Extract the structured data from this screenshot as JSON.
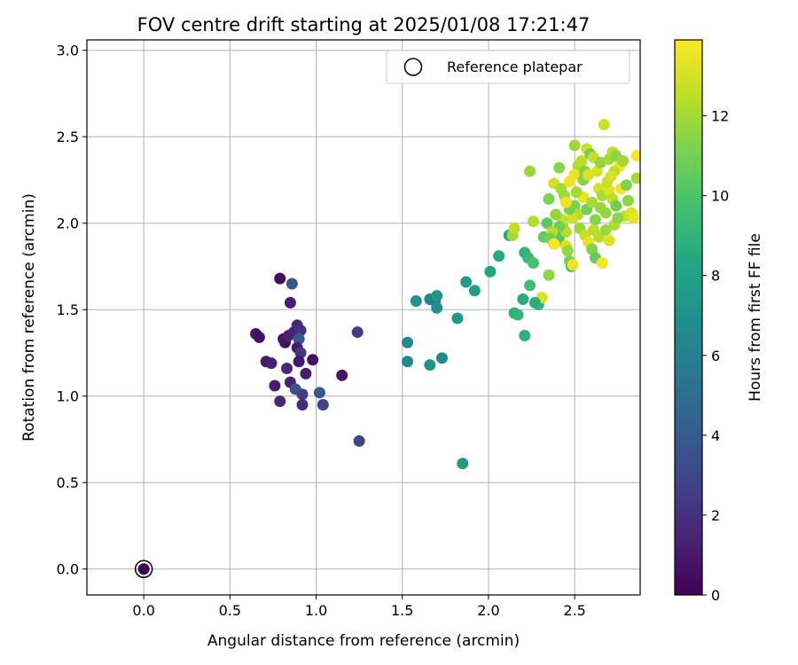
{
  "chart_data": {
    "type": "scatter",
    "title": "FOV centre drift starting at 2025/01/08 17:21:47",
    "xlabel": "Angular distance from reference (arcmin)",
    "ylabel": "Rotation from reference (arcmin)",
    "xlim": [
      -0.33,
      2.88
    ],
    "ylim": [
      -0.15,
      3.06
    ],
    "xticks": [
      0.0,
      0.5,
      1.0,
      1.5,
      2.0,
      2.5
    ],
    "xtick_labels": [
      "0.0",
      "0.5",
      "1.0",
      "1.5",
      "2.0",
      "2.5"
    ],
    "yticks": [
      0.0,
      0.5,
      1.0,
      1.5,
      2.0,
      2.5,
      3.0
    ],
    "ytick_labels": [
      "0.0",
      "0.5",
      "1.0",
      "1.5",
      "2.0",
      "2.5",
      "3.0"
    ],
    "grid": true,
    "legend": {
      "position": "top-right",
      "entries": [
        "Reference platepar"
      ]
    },
    "reference_point": {
      "x": 0.0,
      "y": 0.0,
      "h": 0
    },
    "colorbar": {
      "label": "Hours from first FF file",
      "colormap": "viridis",
      "range": [
        0,
        13.9
      ],
      "ticks": [
        0,
        2,
        4,
        6,
        8,
        10,
        12
      ],
      "tick_labels": [
        "0",
        "2",
        "4",
        "6",
        "8",
        "10",
        "12"
      ]
    },
    "points": [
      {
        "x": 0.79,
        "y": 1.68,
        "h": 0.5
      },
      {
        "x": 0.86,
        "y": 1.65,
        "h": 3.8
      },
      {
        "x": 0.85,
        "y": 1.54,
        "h": 1.2
      },
      {
        "x": 0.65,
        "y": 1.36,
        "h": 1.0
      },
      {
        "x": 0.67,
        "y": 1.34,
        "h": 0.6
      },
      {
        "x": 0.81,
        "y": 1.33,
        "h": 0.8
      },
      {
        "x": 0.82,
        "y": 1.31,
        "h": 0.7
      },
      {
        "x": 0.84,
        "y": 1.35,
        "h": 1.3
      },
      {
        "x": 0.87,
        "y": 1.37,
        "h": 1.5
      },
      {
        "x": 0.89,
        "y": 1.41,
        "h": 1.8
      },
      {
        "x": 0.91,
        "y": 1.38,
        "h": 2.0
      },
      {
        "x": 0.9,
        "y": 1.33,
        "h": 4.0
      },
      {
        "x": 0.89,
        "y": 1.28,
        "h": 1.1
      },
      {
        "x": 0.91,
        "y": 1.25,
        "h": 2.2
      },
      {
        "x": 0.71,
        "y": 1.2,
        "h": 1.0
      },
      {
        "x": 0.74,
        "y": 1.19,
        "h": 1.3
      },
      {
        "x": 0.83,
        "y": 1.16,
        "h": 1.6
      },
      {
        "x": 0.9,
        "y": 1.2,
        "h": 0.9
      },
      {
        "x": 0.98,
        "y": 1.21,
        "h": 0.7
      },
      {
        "x": 0.94,
        "y": 1.13,
        "h": 1.1
      },
      {
        "x": 0.85,
        "y": 1.08,
        "h": 1.4
      },
      {
        "x": 0.76,
        "y": 1.06,
        "h": 1.2
      },
      {
        "x": 0.88,
        "y": 1.04,
        "h": 3.5
      },
      {
        "x": 0.92,
        "y": 1.01,
        "h": 2.4
      },
      {
        "x": 0.79,
        "y": 0.97,
        "h": 1.6
      },
      {
        "x": 0.92,
        "y": 0.95,
        "h": 1.8
      },
      {
        "x": 1.02,
        "y": 1.02,
        "h": 3.9
      },
      {
        "x": 1.04,
        "y": 0.95,
        "h": 2.7
      },
      {
        "x": 1.15,
        "y": 1.12,
        "h": 0.8
      },
      {
        "x": 1.24,
        "y": 1.37,
        "h": 2.5
      },
      {
        "x": 1.25,
        "y": 0.74,
        "h": 2.9
      },
      {
        "x": 1.53,
        "y": 1.31,
        "h": 6.4
      },
      {
        "x": 1.53,
        "y": 1.2,
        "h": 6.7
      },
      {
        "x": 1.58,
        "y": 1.55,
        "h": 7.0
      },
      {
        "x": 1.66,
        "y": 1.56,
        "h": 6.3
      },
      {
        "x": 1.69,
        "y": 1.55,
        "h": 6.0
      },
      {
        "x": 1.7,
        "y": 1.58,
        "h": 7.3
      },
      {
        "x": 1.7,
        "y": 1.51,
        "h": 6.9
      },
      {
        "x": 1.66,
        "y": 1.18,
        "h": 7.2
      },
      {
        "x": 1.73,
        "y": 1.22,
        "h": 6.6
      },
      {
        "x": 1.82,
        "y": 1.45,
        "h": 7.5
      },
      {
        "x": 1.85,
        "y": 0.61,
        "h": 7.6
      },
      {
        "x": 1.87,
        "y": 1.66,
        "h": 7.7
      },
      {
        "x": 1.92,
        "y": 1.61,
        "h": 7.8
      },
      {
        "x": 2.01,
        "y": 1.72,
        "h": 8.2
      },
      {
        "x": 2.06,
        "y": 1.81,
        "h": 8.5
      },
      {
        "x": 2.12,
        "y": 1.93,
        "h": 8.3
      },
      {
        "x": 2.15,
        "y": 1.48,
        "h": 8.8
      },
      {
        "x": 2.17,
        "y": 1.47,
        "h": 9.1
      },
      {
        "x": 2.2,
        "y": 1.56,
        "h": 8.6
      },
      {
        "x": 2.21,
        "y": 1.83,
        "h": 9.0
      },
      {
        "x": 2.23,
        "y": 1.8,
        "h": 9.3
      },
      {
        "x": 2.24,
        "y": 1.64,
        "h": 9.6
      },
      {
        "x": 2.21,
        "y": 1.35,
        "h": 8.9
      },
      {
        "x": 2.26,
        "y": 1.77,
        "h": 9.8
      },
      {
        "x": 2.29,
        "y": 1.53,
        "h": 9.2
      },
      {
        "x": 2.31,
        "y": 1.57,
        "h": 13.2
      },
      {
        "x": 2.27,
        "y": 1.54,
        "h": 8.7
      },
      {
        "x": 2.32,
        "y": 1.92,
        "h": 10.6
      },
      {
        "x": 2.34,
        "y": 2.0,
        "h": 10.4
      },
      {
        "x": 2.35,
        "y": 1.7,
        "h": 11.5
      },
      {
        "x": 2.14,
        "y": 1.93,
        "h": 12.0
      },
      {
        "x": 2.15,
        "y": 1.97,
        "h": 12.6
      },
      {
        "x": 2.26,
        "y": 2.01,
        "h": 12.3
      },
      {
        "x": 2.24,
        "y": 2.3,
        "h": 11.8
      },
      {
        "x": 2.35,
        "y": 2.14,
        "h": 11.2
      },
      {
        "x": 2.38,
        "y": 2.23,
        "h": 13.0
      },
      {
        "x": 2.41,
        "y": 2.32,
        "h": 11.4
      },
      {
        "x": 2.42,
        "y": 2.2,
        "h": 12.1
      },
      {
        "x": 2.44,
        "y": 2.16,
        "h": 11.9
      },
      {
        "x": 2.39,
        "y": 1.89,
        "h": 10.8
      },
      {
        "x": 2.41,
        "y": 1.92,
        "h": 10.2
      },
      {
        "x": 2.43,
        "y": 1.98,
        "h": 11.6
      },
      {
        "x": 2.45,
        "y": 1.95,
        "h": 12.4
      },
      {
        "x": 2.45,
        "y": 1.87,
        "h": 13.3
      },
      {
        "x": 2.46,
        "y": 1.84,
        "h": 11.7
      },
      {
        "x": 2.47,
        "y": 1.78,
        "h": 11.1
      },
      {
        "x": 2.48,
        "y": 1.75,
        "h": 10.1
      },
      {
        "x": 2.49,
        "y": 1.76,
        "h": 13.6
      },
      {
        "x": 2.5,
        "y": 2.45,
        "h": 11.9
      },
      {
        "x": 2.52,
        "y": 2.33,
        "h": 12.2
      },
      {
        "x": 2.5,
        "y": 2.28,
        "h": 13.4
      },
      {
        "x": 2.54,
        "y": 2.36,
        "h": 12.5
      },
      {
        "x": 2.56,
        "y": 2.3,
        "h": 11.3
      },
      {
        "x": 2.57,
        "y": 2.43,
        "h": 12.8
      },
      {
        "x": 2.59,
        "y": 2.4,
        "h": 11.0
      },
      {
        "x": 2.61,
        "y": 2.38,
        "h": 12.7
      },
      {
        "x": 2.63,
        "y": 2.3,
        "h": 13.1
      },
      {
        "x": 2.65,
        "y": 2.35,
        "h": 11.6
      },
      {
        "x": 2.67,
        "y": 2.57,
        "h": 12.9
      },
      {
        "x": 2.7,
        "y": 2.37,
        "h": 12.0
      },
      {
        "x": 2.72,
        "y": 2.41,
        "h": 12.4
      },
      {
        "x": 2.74,
        "y": 2.39,
        "h": 11.5
      },
      {
        "x": 2.76,
        "y": 2.33,
        "h": 13.7
      },
      {
        "x": 2.73,
        "y": 2.3,
        "h": 12.6
      },
      {
        "x": 2.78,
        "y": 2.36,
        "h": 11.9
      },
      {
        "x": 2.86,
        "y": 2.39,
        "h": 13.8
      },
      {
        "x": 2.5,
        "y": 2.1,
        "h": 11.2
      },
      {
        "x": 2.52,
        "y": 2.05,
        "h": 12.3
      },
      {
        "x": 2.55,
        "y": 2.15,
        "h": 13.5
      },
      {
        "x": 2.57,
        "y": 2.08,
        "h": 10.9
      },
      {
        "x": 2.6,
        "y": 2.12,
        "h": 12.1
      },
      {
        "x": 2.62,
        "y": 2.02,
        "h": 11.4
      },
      {
        "x": 2.64,
        "y": 2.2,
        "h": 13.0
      },
      {
        "x": 2.66,
        "y": 2.16,
        "h": 12.2
      },
      {
        "x": 2.68,
        "y": 2.06,
        "h": 11.7
      },
      {
        "x": 2.7,
        "y": 2.19,
        "h": 13.3
      },
      {
        "x": 2.72,
        "y": 2.14,
        "h": 12.5
      },
      {
        "x": 2.74,
        "y": 2.1,
        "h": 11.0
      },
      {
        "x": 2.77,
        "y": 2.2,
        "h": 13.6
      },
      {
        "x": 2.79,
        "y": 2.04,
        "h": 12.8
      },
      {
        "x": 2.81,
        "y": 2.13,
        "h": 11.6
      },
      {
        "x": 2.83,
        "y": 2.06,
        "h": 13.2
      },
      {
        "x": 2.86,
        "y": 2.26,
        "h": 12.0
      },
      {
        "x": 2.53,
        "y": 1.97,
        "h": 11.8
      },
      {
        "x": 2.56,
        "y": 1.93,
        "h": 12.7
      },
      {
        "x": 2.58,
        "y": 1.89,
        "h": 13.4
      },
      {
        "x": 2.6,
        "y": 1.85,
        "h": 11.3
      },
      {
        "x": 2.62,
        "y": 1.8,
        "h": 10.6
      },
      {
        "x": 2.64,
        "y": 1.92,
        "h": 12.4
      },
      {
        "x": 2.66,
        "y": 1.77,
        "h": 13.7
      },
      {
        "x": 2.68,
        "y": 1.96,
        "h": 11.9
      },
      {
        "x": 2.7,
        "y": 1.9,
        "h": 13.1
      },
      {
        "x": 2.73,
        "y": 1.99,
        "h": 12.2
      },
      {
        "x": 2.75,
        "y": 2.03,
        "h": 11.5
      },
      {
        "x": 2.49,
        "y": 2.03,
        "h": 12.9
      },
      {
        "x": 2.47,
        "y": 2.08,
        "h": 11.1
      },
      {
        "x": 2.45,
        "y": 2.12,
        "h": 13.5
      },
      {
        "x": 2.43,
        "y": 2.02,
        "h": 12.6
      },
      {
        "x": 2.41,
        "y": 1.98,
        "h": 10.9
      },
      {
        "x": 2.39,
        "y": 2.05,
        "h": 11.7
      },
      {
        "x": 2.37,
        "y": 1.95,
        "h": 12.3
      },
      {
        "x": 2.36,
        "y": 1.91,
        "h": 11.0
      },
      {
        "x": 2.38,
        "y": 1.88,
        "h": 13.8
      },
      {
        "x": 2.61,
        "y": 1.96,
        "h": 12.5
      },
      {
        "x": 2.55,
        "y": 2.25,
        "h": 11.4
      },
      {
        "x": 2.58,
        "y": 2.28,
        "h": 13.2
      },
      {
        "x": 2.51,
        "y": 2.18,
        "h": 12.0
      },
      {
        "x": 2.47,
        "y": 2.24,
        "h": 13.6
      },
      {
        "x": 2.65,
        "y": 2.09,
        "h": 11.8
      },
      {
        "x": 2.69,
        "y": 2.24,
        "h": 12.7
      },
      {
        "x": 2.71,
        "y": 2.27,
        "h": 13.0
      },
      {
        "x": 2.8,
        "y": 2.22,
        "h": 11.2
      },
      {
        "x": 2.84,
        "y": 2.03,
        "h": 13.4
      }
    ]
  }
}
